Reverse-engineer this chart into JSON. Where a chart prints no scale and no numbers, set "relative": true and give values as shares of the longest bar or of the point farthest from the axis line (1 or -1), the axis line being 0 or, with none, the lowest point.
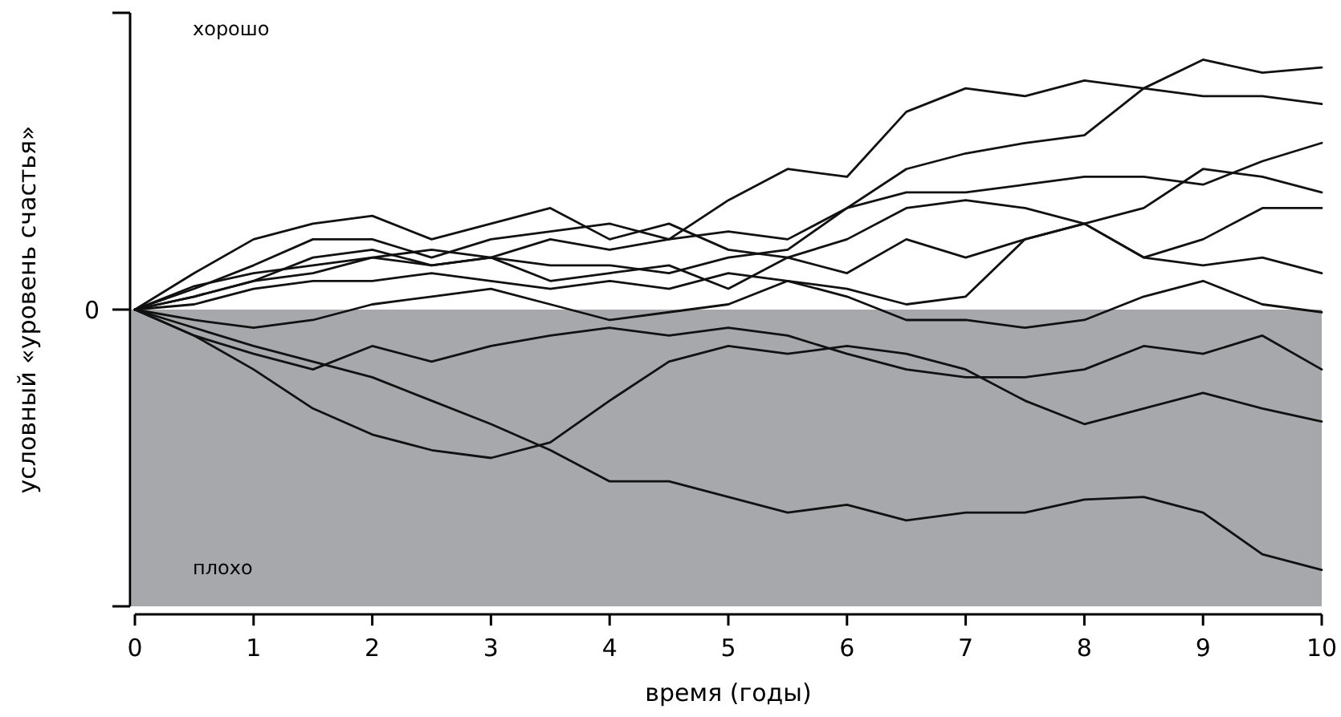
{
  "chart_data": {
    "type": "line",
    "xlabel": "время (годы)",
    "ylabel": "условный «уровень счастья»",
    "relative": true,
    "x": [
      0,
      0.5,
      1,
      1.5,
      2,
      2.5,
      3,
      3.5,
      4,
      4.5,
      5,
      5.5,
      6,
      6.5,
      7,
      7.5,
      8,
      8.5,
      9,
      9.5,
      10
    ],
    "xlim": [
      0,
      10
    ],
    "xticks": [
      0,
      1,
      2,
      3,
      4,
      5,
      6,
      7,
      8,
      9,
      10
    ],
    "grid": false,
    "line_style": "solid",
    "series": [
      {
        "color": "#111111",
        "values": [
          0,
          0.09,
          0.14,
          0.17,
          0.2,
          0.23,
          0.2,
          0.27,
          0.23,
          0.27,
          0.42,
          0.54,
          0.51,
          0.76,
          0.85,
          0.82,
          0.88,
          0.85,
          0.96,
          0.91,
          0.93
        ]
      },
      {
        "color": "#111111",
        "values": [
          0,
          0.05,
          0.11,
          0.14,
          0.2,
          0.17,
          0.2,
          0.17,
          0.17,
          0.14,
          0.2,
          0.23,
          0.39,
          0.54,
          0.6,
          0.64,
          0.67,
          0.85,
          0.82,
          0.82,
          0.79
        ]
      },
      {
        "color": "#111111",
        "values": [
          0,
          0.08,
          0.17,
          0.27,
          0.27,
          0.2,
          0.27,
          0.3,
          0.33,
          0.27,
          0.3,
          0.27,
          0.39,
          0.45,
          0.45,
          0.48,
          0.51,
          0.51,
          0.48,
          0.57,
          0.64
        ]
      },
      {
        "color": "#111111",
        "values": [
          0,
          0.14,
          0.27,
          0.33,
          0.36,
          0.27,
          0.33,
          0.39,
          0.27,
          0.33,
          0.23,
          0.2,
          0.27,
          0.39,
          0.42,
          0.39,
          0.33,
          0.39,
          0.54,
          0.51,
          0.45
        ]
      },
      {
        "color": "#111111",
        "values": [
          0,
          0.05,
          0.11,
          0.2,
          0.23,
          0.17,
          0.2,
          0.11,
          0.14,
          0.17,
          0.08,
          0.2,
          0.14,
          0.27,
          0.2,
          0.27,
          0.33,
          0.2,
          0.27,
          0.39,
          0.39
        ]
      },
      {
        "color": "#111111",
        "values": [
          0,
          0.02,
          0.08,
          0.11,
          0.11,
          0.14,
          0.11,
          0.08,
          0.11,
          0.08,
          0.14,
          0.11,
          0.08,
          0.02,
          0.05,
          0.27,
          0.33,
          0.2,
          0.17,
          0.2,
          0.14
        ]
      },
      {
        "color": "#111111",
        "values": [
          0,
          -0.04,
          -0.07,
          -0.04,
          0.02,
          0.05,
          0.08,
          0.02,
          -0.04,
          -0.01,
          0.02,
          0.11,
          0.05,
          -0.04,
          -0.04,
          -0.07,
          -0.04,
          0.05,
          0.11,
          0.02,
          -0.01
        ]
      },
      {
        "color": "#111111",
        "values": [
          0,
          -0.1,
          -0.17,
          -0.23,
          -0.14,
          -0.2,
          -0.14,
          -0.1,
          -0.07,
          -0.1,
          -0.07,
          -0.1,
          -0.17,
          -0.23,
          -0.26,
          -0.26,
          -0.23,
          -0.14,
          -0.17,
          -0.1,
          -0.23
        ]
      },
      {
        "color": "#111111",
        "values": [
          0,
          -0.1,
          -0.23,
          -0.38,
          -0.48,
          -0.54,
          -0.57,
          -0.51,
          -0.35,
          -0.2,
          -0.14,
          -0.17,
          -0.14,
          -0.17,
          -0.23,
          -0.35,
          -0.44,
          -0.38,
          -0.32,
          -0.38,
          -0.43
        ]
      },
      {
        "color": "#111111",
        "values": [
          0,
          -0.07,
          -0.14,
          -0.2,
          -0.26,
          -0.35,
          -0.44,
          -0.54,
          -0.66,
          -0.66,
          -0.72,
          -0.78,
          -0.75,
          -0.81,
          -0.78,
          -0.78,
          -0.73,
          -0.72,
          -0.78,
          -0.94,
          -1
        ]
      }
    ],
    "bands": [
      {
        "axis": "y",
        "from": -1.14,
        "to": 0,
        "color": "#a6a8ab"
      }
    ],
    "ref_lines": [
      {
        "axis": "y",
        "value": 0,
        "label": "0"
      }
    ],
    "annotations": [
      "хорошо",
      "плохо"
    ]
  }
}
